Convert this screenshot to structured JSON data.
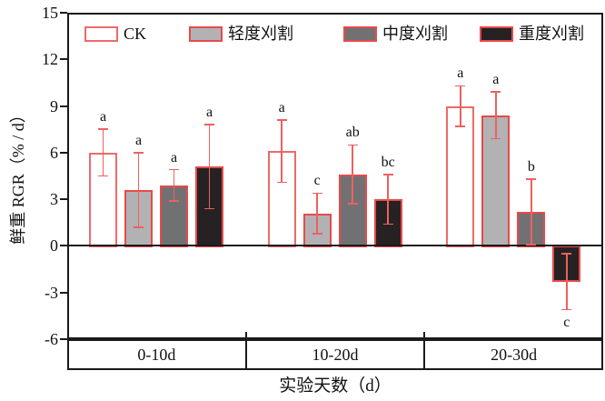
{
  "chart_data": {
    "type": "bar",
    "title": "",
    "xlabel": "实验天数（d）",
    "ylabel": "鲜重 RGR（% / d）",
    "ylim": [
      -6,
      15
    ],
    "yticks": [
      15,
      12,
      9,
      6,
      3,
      0,
      -3,
      -6
    ],
    "categories": [
      "0-10d",
      "10-20d",
      "20-30d"
    ],
    "series": [
      {
        "name": "CK",
        "fill": "#ffffff",
        "border": "#ee6a6a",
        "values": [
          6.0,
          6.1,
          9.0
        ],
        "errors": [
          1.5,
          2.0,
          1.3
        ],
        "letters": [
          "a",
          "a",
          "a"
        ]
      },
      {
        "name": "轻度刈割",
        "fill": "#b2b2b4",
        "border": "#e9494a",
        "values": [
          3.6,
          2.1,
          8.4
        ],
        "errors": [
          2.4,
          1.3,
          1.5
        ],
        "letters": [
          "a",
          "c",
          "a"
        ]
      },
      {
        "name": "中度刈割",
        "fill": "#717173",
        "border": "#e9494a",
        "values": [
          3.9,
          4.6,
          2.2
        ],
        "errors": [
          1.0,
          1.9,
          2.1
        ],
        "letters": [
          "a",
          "ab",
          "b"
        ]
      },
      {
        "name": "重度刈割",
        "fill": "#262223",
        "border": "#e9494a",
        "values": [
          5.1,
          3.0,
          -2.3
        ],
        "errors": [
          2.7,
          1.6,
          1.8
        ],
        "letters": [
          "a",
          "bc",
          "c"
        ]
      }
    ],
    "error_color": "#ee6060",
    "axis_color": "#1a1a1a",
    "grid": false,
    "legend_position": "top-inside"
  }
}
